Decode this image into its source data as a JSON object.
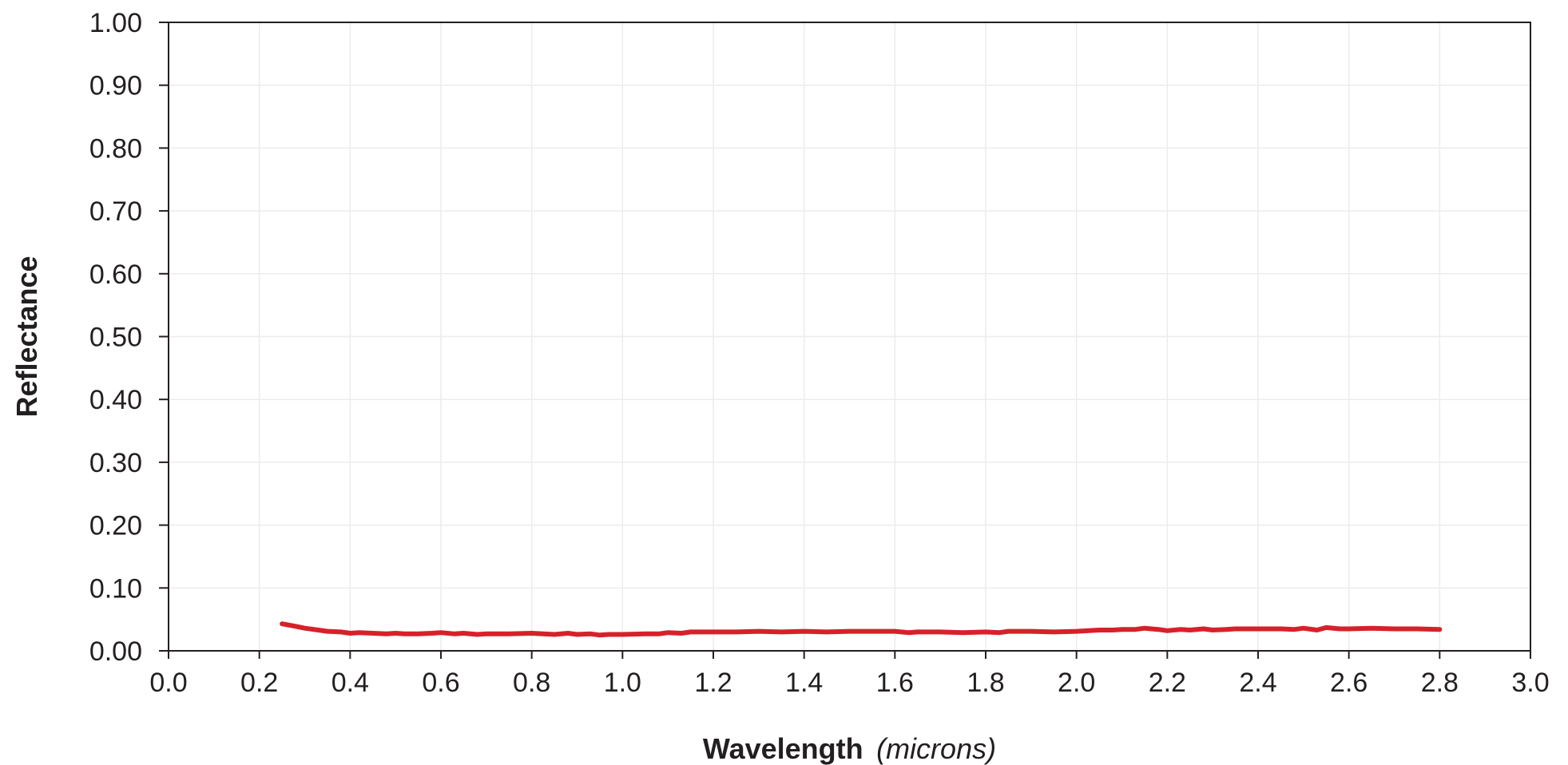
{
  "chart_data": {
    "type": "line",
    "title": "",
    "xlabel": "Wavelength",
    "xlabel_unit": "(microns)",
    "ylabel": "Reflectance",
    "xlim": [
      0.0,
      3.0
    ],
    "ylim": [
      0.0,
      1.0
    ],
    "x_ticks": [
      "0.0",
      "0.2",
      "0.4",
      "0.6",
      "0.8",
      "1.0",
      "1.2",
      "1.4",
      "1.6",
      "1.8",
      "2.0",
      "2.2",
      "2.4",
      "2.6",
      "2.8",
      "3.0"
    ],
    "y_ticks": [
      "0.00",
      "0.10",
      "0.20",
      "0.30",
      "0.40",
      "0.50",
      "0.60",
      "0.70",
      "0.80",
      "0.90",
      "1.00"
    ],
    "grid": true,
    "legend": "none",
    "series": [
      {
        "color": "#d7212a",
        "x": [
          0.25,
          0.28,
          0.3,
          0.33,
          0.35,
          0.38,
          0.4,
          0.42,
          0.45,
          0.48,
          0.5,
          0.52,
          0.55,
          0.58,
          0.6,
          0.63,
          0.65,
          0.68,
          0.7,
          0.75,
          0.8,
          0.85,
          0.88,
          0.9,
          0.93,
          0.95,
          0.97,
          1.0,
          1.05,
          1.08,
          1.1,
          1.13,
          1.15,
          1.2,
          1.25,
          1.3,
          1.35,
          1.4,
          1.45,
          1.5,
          1.55,
          1.6,
          1.63,
          1.65,
          1.7,
          1.75,
          1.8,
          1.83,
          1.85,
          1.9,
          1.95,
          2.0,
          2.05,
          2.08,
          2.1,
          2.13,
          2.15,
          2.18,
          2.2,
          2.23,
          2.25,
          2.28,
          2.3,
          2.33,
          2.35,
          2.4,
          2.45,
          2.48,
          2.5,
          2.53,
          2.55,
          2.58,
          2.6,
          2.65,
          2.7,
          2.75,
          2.8
        ],
        "y": [
          0.043,
          0.039,
          0.036,
          0.033,
          0.031,
          0.03,
          0.028,
          0.029,
          0.028,
          0.027,
          0.028,
          0.027,
          0.027,
          0.028,
          0.029,
          0.027,
          0.028,
          0.026,
          0.027,
          0.027,
          0.028,
          0.026,
          0.028,
          0.026,
          0.027,
          0.025,
          0.026,
          0.026,
          0.027,
          0.027,
          0.029,
          0.028,
          0.03,
          0.03,
          0.03,
          0.031,
          0.03,
          0.031,
          0.03,
          0.031,
          0.031,
          0.031,
          0.029,
          0.03,
          0.03,
          0.029,
          0.03,
          0.029,
          0.031,
          0.031,
          0.03,
          0.031,
          0.033,
          0.033,
          0.034,
          0.034,
          0.036,
          0.034,
          0.032,
          0.034,
          0.033,
          0.035,
          0.033,
          0.034,
          0.035,
          0.035,
          0.035,
          0.034,
          0.036,
          0.033,
          0.037,
          0.035,
          0.035,
          0.036,
          0.035,
          0.035,
          0.034
        ]
      }
    ]
  }
}
